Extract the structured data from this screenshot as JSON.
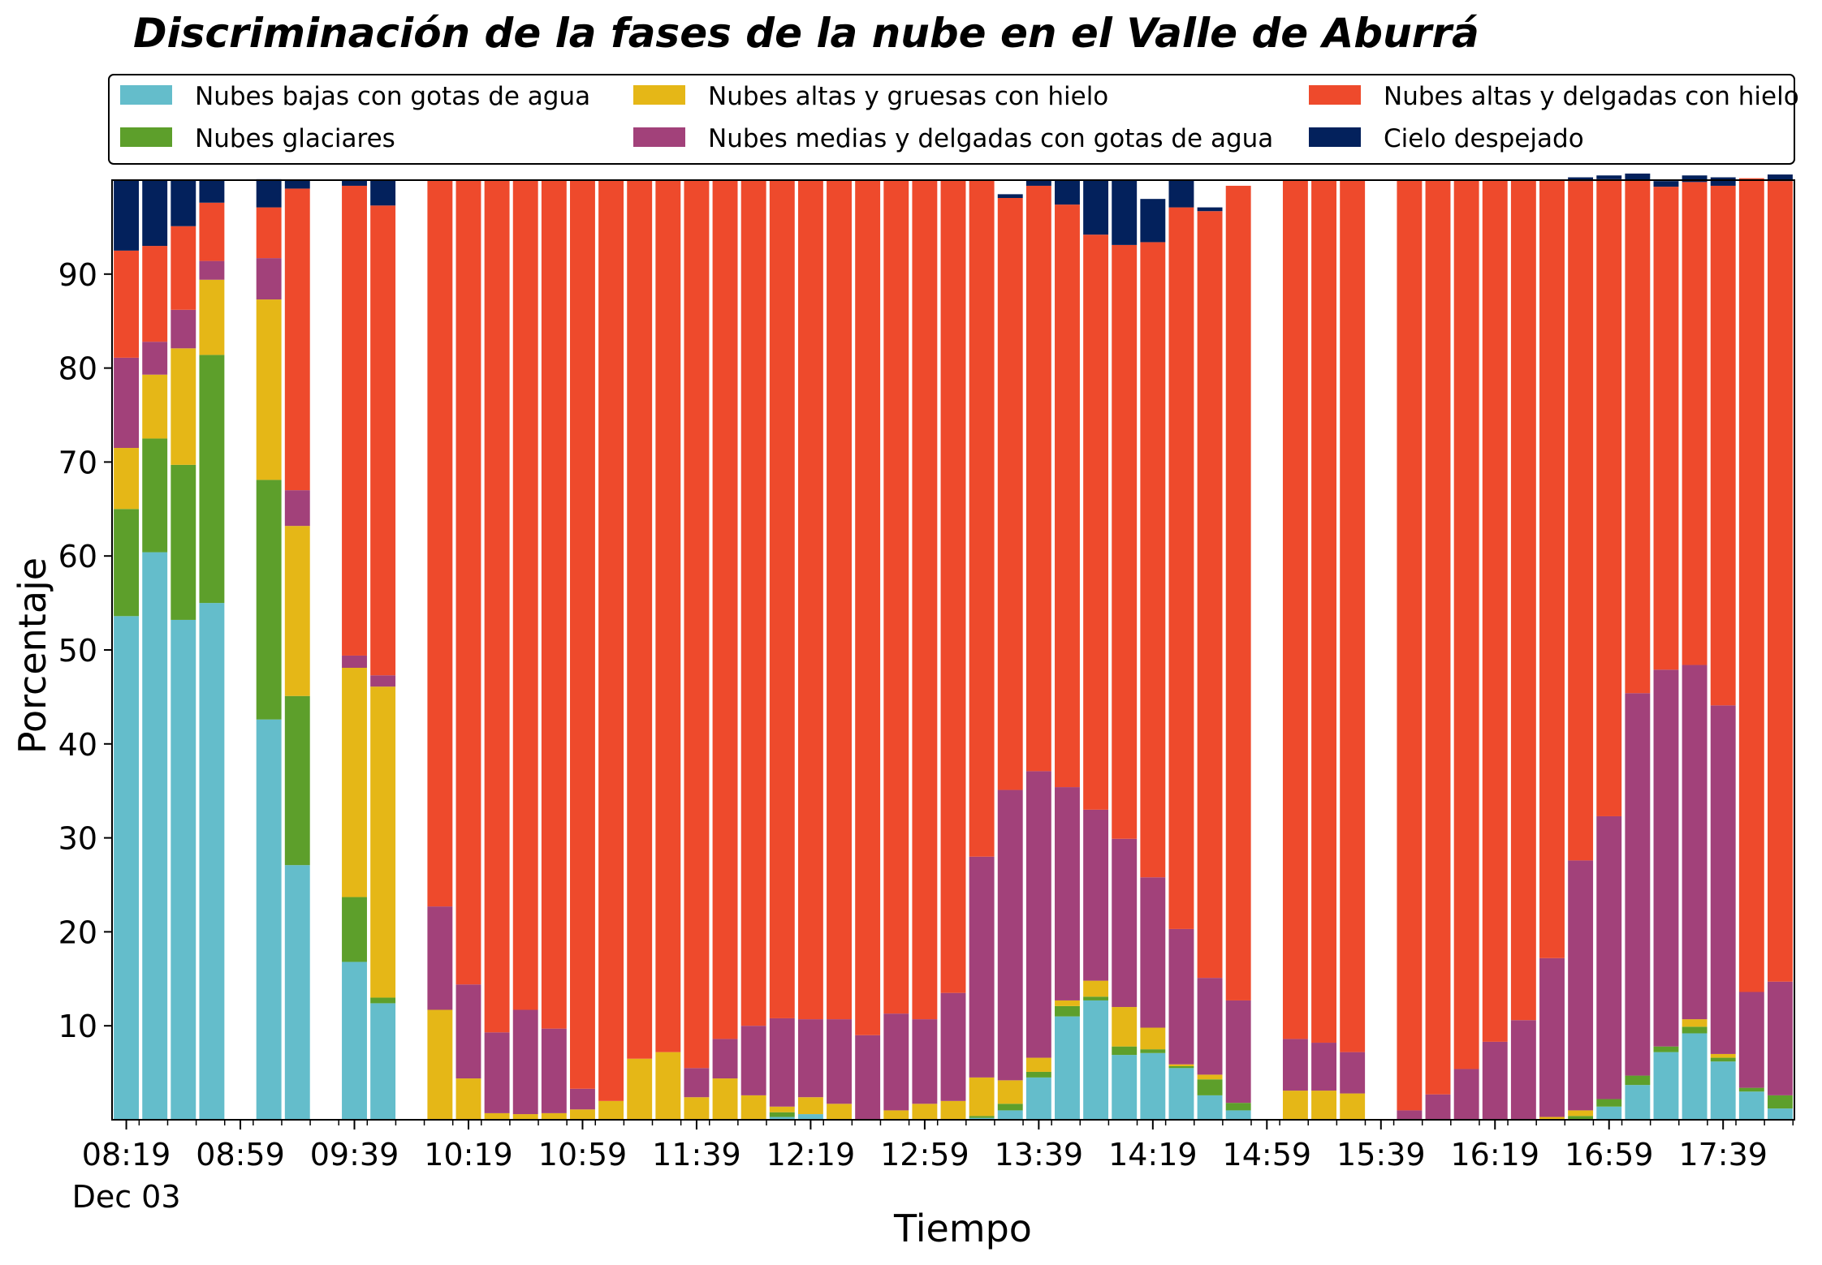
{
  "colors": {
    "low_water": "#64bdcb",
    "glacier": "#5d9f2b",
    "high_thick_ice": "#e5b717",
    "mid_thin_water": "#a2417a",
    "high_thin_ice": "#ee4a2c",
    "clear_sky": "#03215c"
  },
  "chart_data": {
    "type": "bar",
    "stacked": true,
    "title": "Discriminación de la fases de la nube en el Valle de Aburrá",
    "xlabel": "Tiempo",
    "ylabel": "Porcentaje",
    "ylim": [
      0,
      100
    ],
    "yticks": [
      10,
      20,
      30,
      40,
      50,
      60,
      70,
      80,
      90
    ],
    "xticks": [
      "08:19",
      "08:59",
      "09:39",
      "10:19",
      "10:59",
      "11:39",
      "12:19",
      "12:59",
      "13:39",
      "14:19",
      "14:59",
      "15:39",
      "16:19",
      "16:59",
      "17:39"
    ],
    "xtick_sublabel": "Dec 03",
    "interval_minutes": 10,
    "legend_position": "top",
    "categories": [
      "08:19",
      "08:29",
      "08:39",
      "08:49",
      "08:59",
      "09:09",
      "09:19",
      "09:29",
      "09:39",
      "09:49",
      "09:59",
      "10:09",
      "10:19",
      "10:29",
      "10:39",
      "10:49",
      "10:59",
      "11:09",
      "11:19",
      "11:29",
      "11:39",
      "11:49",
      "11:59",
      "12:09",
      "12:19",
      "12:29",
      "12:39",
      "12:49",
      "12:59",
      "13:09",
      "13:19",
      "13:29",
      "13:39",
      "13:49",
      "13:59",
      "14:09",
      "14:19",
      "14:29",
      "14:39",
      "14:49",
      "14:59",
      "15:09",
      "15:19",
      "15:29",
      "15:39",
      "15:49",
      "15:59",
      "16:09",
      "16:19",
      "16:29",
      "16:39",
      "16:49",
      "16:59",
      "17:09",
      "17:19",
      "17:29",
      "17:39",
      "17:49",
      "17:59"
    ],
    "series": [
      {
        "name": "Nubes bajas con gotas de agua",
        "color_key": "low_water",
        "values": [
          53.6,
          60.4,
          53.2,
          55.0,
          null,
          42.6,
          27.1,
          null,
          16.8,
          12.4,
          null,
          0,
          0,
          0,
          0,
          0,
          0,
          0,
          0,
          0,
          0,
          0,
          0,
          0.3,
          0.6,
          0,
          0,
          0,
          0,
          0,
          0.2,
          1.0,
          4.5,
          11.0,
          12.7,
          6.9,
          7.1,
          5.5,
          2.6,
          1.0,
          null,
          0,
          0,
          0,
          null,
          0,
          0,
          0,
          0,
          0,
          0,
          0,
          1.4,
          3.7,
          7.2,
          9.2,
          6.2,
          3.0,
          1.2
        ]
      },
      {
        "name": "Nubes glaciares",
        "color_key": "glacier",
        "values": [
          11.4,
          12.1,
          16.5,
          26.4,
          null,
          25.5,
          18.0,
          null,
          6.9,
          0.6,
          null,
          0,
          0,
          0,
          0,
          0,
          0,
          0,
          0,
          0,
          0,
          0,
          0,
          0.5,
          0,
          0,
          0,
          0,
          0,
          0,
          0.2,
          0.7,
          0.6,
          1.1,
          0.4,
          0.9,
          0.4,
          0.2,
          1.7,
          0.8,
          null,
          0,
          0,
          0,
          null,
          0,
          0,
          0,
          0,
          0,
          0,
          0.4,
          0.8,
          1.0,
          0.6,
          0.7,
          0.4,
          0.4,
          1.4
        ]
      },
      {
        "name": "Nubes altas y gruesas con hielo",
        "color_key": "high_thick_ice",
        "values": [
          6.5,
          6.8,
          12.4,
          8.0,
          null,
          19.2,
          18.1,
          null,
          24.4,
          33.1,
          null,
          11.7,
          4.4,
          0.7,
          0.6,
          0.7,
          1.1,
          2.0,
          6.5,
          7.2,
          2.4,
          4.4,
          2.6,
          0.6,
          1.8,
          1.7,
          0,
          1.0,
          1.7,
          2.0,
          4.1,
          2.5,
          1.5,
          0.6,
          1.7,
          4.2,
          2.3,
          0.2,
          0.5,
          0,
          null,
          3.1,
          3.1,
          2.8,
          null,
          0,
          0,
          0,
          0,
          0,
          0.3,
          0.6,
          0,
          0,
          0,
          0.8,
          0.4,
          0,
          0
        ]
      },
      {
        "name": "Nubes medias y delgadas con gotas de agua",
        "color_key": "mid_thin_water",
        "values": [
          9.6,
          3.5,
          4.1,
          2.0,
          null,
          4.4,
          3.8,
          null,
          1.3,
          1.2,
          null,
          11.0,
          10.0,
          8.6,
          11.1,
          9.0,
          2.2,
          0,
          0,
          0,
          3.1,
          4.2,
          7.4,
          9.4,
          8.3,
          9.0,
          9.0,
          10.3,
          9.0,
          11.5,
          23.5,
          30.9,
          30.5,
          22.7,
          18.2,
          17.9,
          16.0,
          14.4,
          10.3,
          10.9,
          null,
          5.5,
          5.1,
          4.4,
          null,
          1.0,
          2.7,
          5.4,
          8.3,
          10.6,
          16.9,
          26.6,
          30.1,
          40.7,
          40.1,
          37.7,
          37.1,
          10.2,
          12.1
        ]
      },
      {
        "name": "Nubes altas y delgadas con hielo",
        "color_key": "high_thin_ice",
        "values": [
          11.4,
          10.2,
          8.9,
          6.2,
          null,
          5.4,
          32.1,
          null,
          50.0,
          50.0,
          null,
          77.3,
          85.6,
          90.7,
          88.3,
          90.3,
          96.7,
          98.0,
          93.5,
          92.8,
          94.5,
          91.4,
          90.0,
          89.2,
          89.3,
          89.3,
          91.0,
          88.7,
          89.3,
          86.5,
          72.0,
          63.0,
          62.3,
          62.0,
          61.2,
          63.2,
          67.6,
          76.8,
          81.6,
          86.7,
          null,
          91.4,
          91.8,
          92.8,
          null,
          99.0,
          97.3,
          94.6,
          91.7,
          89.4,
          82.8,
          72.3,
          67.8,
          54.6,
          51.4,
          51.4,
          55.3,
          86.6,
          85.2
        ]
      },
      {
        "name": "Cielo despejado",
        "color_key": "clear_sky",
        "values": [
          7.5,
          7.0,
          4.9,
          2.4,
          null,
          3.0,
          0.9,
          null,
          0.6,
          2.7,
          null,
          0,
          0,
          0,
          0,
          0,
          0,
          0,
          0,
          0,
          0,
          0,
          0,
          0,
          0,
          0,
          0,
          0,
          0,
          0,
          0,
          0.4,
          0.6,
          2.6,
          5.8,
          6.9,
          4.6,
          2.9,
          0.4,
          0,
          null,
          0,
          0,
          0,
          null,
          0,
          0,
          0,
          0,
          0,
          0,
          0.4,
          0.4,
          0.7,
          0.6,
          0.7,
          0.9,
          0,
          0.7
        ]
      }
    ]
  }
}
